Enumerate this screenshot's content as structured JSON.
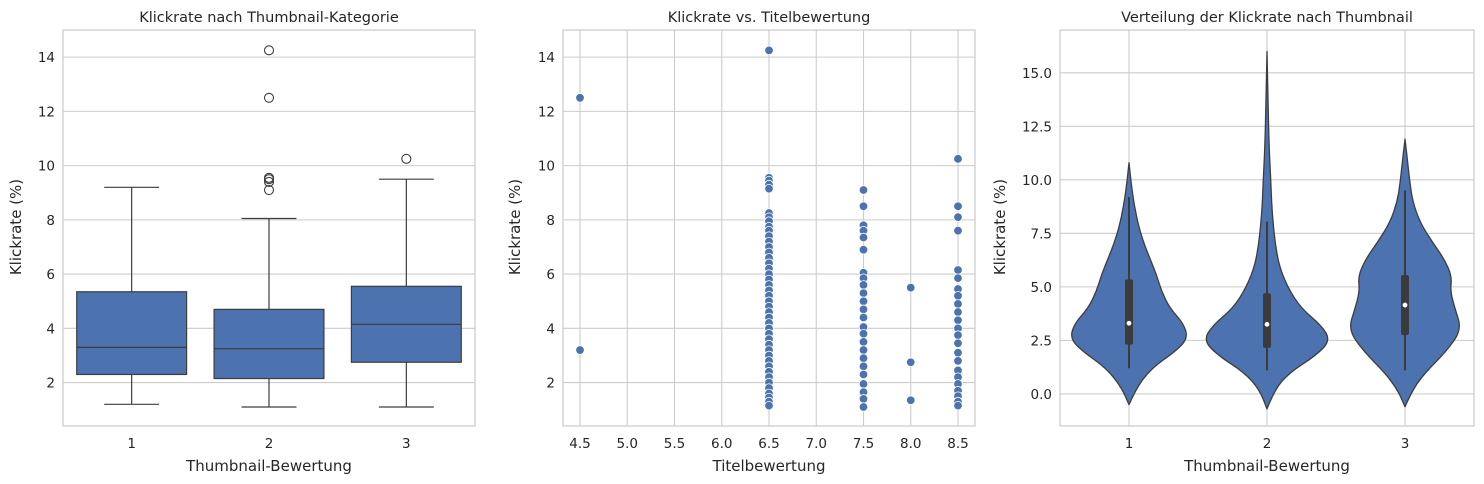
{
  "chart_data": [
    {
      "type": "box",
      "title": "Klickrate nach Thumbnail-Kategorie",
      "xlabel": "Thumbnail-Bewertung",
      "ylabel": "Klickrate (%)",
      "categories": [
        "1",
        "2",
        "3"
      ],
      "ylim": [
        0.4,
        15.0
      ],
      "yticks": [
        "2",
        "4",
        "6",
        "8",
        "10",
        "12",
        "14"
      ],
      "grid": true,
      "color": "#4c72b0",
      "boxes": [
        {
          "category": "1",
          "whisker_low": 1.2,
          "q1": 2.3,
          "median": 3.3,
          "q3": 5.35,
          "whisker_high": 9.2,
          "outliers": []
        },
        {
          "category": "2",
          "whisker_low": 1.1,
          "q1": 2.15,
          "median": 3.25,
          "q3": 4.7,
          "whisker_high": 8.05,
          "outliers": [
            9.1,
            9.4,
            9.5,
            9.55,
            12.5,
            14.25
          ]
        },
        {
          "category": "3",
          "whisker_low": 1.1,
          "q1": 2.75,
          "median": 4.15,
          "q3": 5.55,
          "whisker_high": 9.5,
          "outliers": [
            10.25
          ]
        }
      ]
    },
    {
      "type": "scatter",
      "title": "Klickrate vs. Titelbewertung",
      "xlabel": "Titelbewertung",
      "ylabel": "Klickrate (%)",
      "xlim": [
        4.32,
        8.68
      ],
      "ylim": [
        0.4,
        15.0
      ],
      "xticks": [
        "4.5",
        "5.0",
        "5.5",
        "6.0",
        "6.5",
        "7.0",
        "7.5",
        "8.0",
        "8.5"
      ],
      "yticks": [
        "2",
        "4",
        "6",
        "8",
        "10",
        "12",
        "14"
      ],
      "grid": true,
      "color": "#4c72b0",
      "points": [
        {
          "x": 4.5,
          "y": 12.5
        },
        {
          "x": 4.5,
          "y": 3.2
        },
        {
          "x": 6.5,
          "y": 14.25
        },
        {
          "x": 6.5,
          "y": 9.55
        },
        {
          "x": 6.5,
          "y": 9.45
        },
        {
          "x": 6.5,
          "y": 9.3
        },
        {
          "x": 6.5,
          "y": 9.15
        },
        {
          "x": 6.5,
          "y": 8.25
        },
        {
          "x": 6.5,
          "y": 8.1
        },
        {
          "x": 6.5,
          "y": 7.95
        },
        {
          "x": 6.5,
          "y": 7.75
        },
        {
          "x": 6.5,
          "y": 7.6
        },
        {
          "x": 6.5,
          "y": 7.4
        },
        {
          "x": 6.5,
          "y": 7.2
        },
        {
          "x": 6.5,
          "y": 7.0
        },
        {
          "x": 6.5,
          "y": 6.8
        },
        {
          "x": 6.5,
          "y": 6.6
        },
        {
          "x": 6.5,
          "y": 6.4
        },
        {
          "x": 6.5,
          "y": 6.2
        },
        {
          "x": 6.5,
          "y": 6.0
        },
        {
          "x": 6.5,
          "y": 5.8
        },
        {
          "x": 6.5,
          "y": 5.6
        },
        {
          "x": 6.5,
          "y": 5.4
        },
        {
          "x": 6.5,
          "y": 5.2
        },
        {
          "x": 6.5,
          "y": 5.0
        },
        {
          "x": 6.5,
          "y": 4.8
        },
        {
          "x": 6.5,
          "y": 4.6
        },
        {
          "x": 6.5,
          "y": 4.4
        },
        {
          "x": 6.5,
          "y": 4.2
        },
        {
          "x": 6.5,
          "y": 4.0
        },
        {
          "x": 6.5,
          "y": 3.8
        },
        {
          "x": 6.5,
          "y": 3.6
        },
        {
          "x": 6.5,
          "y": 3.4
        },
        {
          "x": 6.5,
          "y": 3.2
        },
        {
          "x": 6.5,
          "y": 3.0
        },
        {
          "x": 6.5,
          "y": 2.8
        },
        {
          "x": 6.5,
          "y": 2.6
        },
        {
          "x": 6.5,
          "y": 2.4
        },
        {
          "x": 6.5,
          "y": 2.2
        },
        {
          "x": 6.5,
          "y": 2.0
        },
        {
          "x": 6.5,
          "y": 1.8
        },
        {
          "x": 6.5,
          "y": 1.6
        },
        {
          "x": 6.5,
          "y": 1.45
        },
        {
          "x": 6.5,
          "y": 1.3
        },
        {
          "x": 6.5,
          "y": 1.15
        },
        {
          "x": 7.5,
          "y": 9.1
        },
        {
          "x": 7.5,
          "y": 8.5
        },
        {
          "x": 7.5,
          "y": 7.8
        },
        {
          "x": 7.5,
          "y": 7.6
        },
        {
          "x": 7.5,
          "y": 7.35
        },
        {
          "x": 7.5,
          "y": 6.9
        },
        {
          "x": 7.5,
          "y": 6.05
        },
        {
          "x": 7.5,
          "y": 5.85
        },
        {
          "x": 7.5,
          "y": 5.6
        },
        {
          "x": 7.5,
          "y": 5.3
        },
        {
          "x": 7.5,
          "y": 5.0
        },
        {
          "x": 7.5,
          "y": 4.7
        },
        {
          "x": 7.5,
          "y": 4.4
        },
        {
          "x": 7.5,
          "y": 4.05
        },
        {
          "x": 7.5,
          "y": 3.8
        },
        {
          "x": 7.5,
          "y": 3.5
        },
        {
          "x": 7.5,
          "y": 3.2
        },
        {
          "x": 7.5,
          "y": 2.9
        },
        {
          "x": 7.5,
          "y": 2.6
        },
        {
          "x": 7.5,
          "y": 2.3
        },
        {
          "x": 7.5,
          "y": 1.95
        },
        {
          "x": 7.5,
          "y": 1.65
        },
        {
          "x": 7.5,
          "y": 1.4
        },
        {
          "x": 7.5,
          "y": 1.1
        },
        {
          "x": 8.0,
          "y": 5.5
        },
        {
          "x": 8.0,
          "y": 2.75
        },
        {
          "x": 8.0,
          "y": 1.35
        },
        {
          "x": 8.5,
          "y": 10.25
        },
        {
          "x": 8.5,
          "y": 8.5
        },
        {
          "x": 8.5,
          "y": 8.1
        },
        {
          "x": 8.5,
          "y": 7.6
        },
        {
          "x": 8.5,
          "y": 6.15
        },
        {
          "x": 8.5,
          "y": 5.85
        },
        {
          "x": 8.5,
          "y": 5.45
        },
        {
          "x": 8.5,
          "y": 5.2
        },
        {
          "x": 8.5,
          "y": 4.9
        },
        {
          "x": 8.5,
          "y": 4.6
        },
        {
          "x": 8.5,
          "y": 4.3
        },
        {
          "x": 8.5,
          "y": 4.0
        },
        {
          "x": 8.5,
          "y": 3.75
        },
        {
          "x": 8.5,
          "y": 3.45
        },
        {
          "x": 8.5,
          "y": 3.1
        },
        {
          "x": 8.5,
          "y": 2.8
        },
        {
          "x": 8.5,
          "y": 2.45
        },
        {
          "x": 8.5,
          "y": 2.2
        },
        {
          "x": 8.5,
          "y": 1.95
        },
        {
          "x": 8.5,
          "y": 1.7
        },
        {
          "x": 8.5,
          "y": 1.5
        },
        {
          "x": 8.5,
          "y": 1.3
        },
        {
          "x": 8.5,
          "y": 1.15
        }
      ]
    },
    {
      "type": "violin",
      "title": "Verteilung der Klickrate nach Thumbnail",
      "xlabel": "Thumbnail-Bewertung",
      "ylabel": "Klickrate (%)",
      "categories": [
        "1",
        "2",
        "3"
      ],
      "ylim": [
        -1.5,
        17.0
      ],
      "yticks": [
        "0.0",
        "2.5",
        "5.0",
        "7.5",
        "10.0",
        "12.5",
        "15.0"
      ],
      "grid": true,
      "color": "#4c72b0",
      "violins": [
        {
          "category": "1",
          "min": -0.5,
          "max": 10.8,
          "whisker_low": 1.2,
          "q1": 2.3,
          "median": 3.3,
          "q3": 5.35,
          "whisker_high": 9.2,
          "density": [
            [
              -0.5,
              0.0
            ],
            [
              0.3,
              0.1
            ],
            [
              1.2,
              0.3
            ],
            [
              2.0,
              0.62
            ],
            [
              2.6,
              0.78
            ],
            [
              3.3,
              0.72
            ],
            [
              4.0,
              0.54
            ],
            [
              4.8,
              0.43
            ],
            [
              5.6,
              0.36
            ],
            [
              6.3,
              0.28
            ],
            [
              7.0,
              0.2
            ],
            [
              7.8,
              0.13
            ],
            [
              8.8,
              0.07
            ],
            [
              9.8,
              0.03
            ],
            [
              10.8,
              0.0
            ]
          ]
        },
        {
          "category": "2",
          "min": -0.7,
          "max": 16.0,
          "whisker_low": 1.1,
          "q1": 2.15,
          "median": 3.25,
          "q3": 4.7,
          "whisker_high": 8.05,
          "density": [
            [
              -0.7,
              0.0
            ],
            [
              0.2,
              0.1
            ],
            [
              1.0,
              0.3
            ],
            [
              1.8,
              0.65
            ],
            [
              2.5,
              0.84
            ],
            [
              3.2,
              0.72
            ],
            [
              4.0,
              0.45
            ],
            [
              5.0,
              0.27
            ],
            [
              6.0,
              0.16
            ],
            [
              7.0,
              0.11
            ],
            [
              8.0,
              0.08
            ],
            [
              9.0,
              0.06
            ],
            [
              10.0,
              0.05
            ],
            [
              11.0,
              0.035
            ],
            [
              12.0,
              0.025
            ],
            [
              13.0,
              0.018
            ],
            [
              14.0,
              0.012
            ],
            [
              15.0,
              0.006
            ],
            [
              16.0,
              0.0
            ]
          ]
        },
        {
          "category": "3",
          "min": -0.6,
          "max": 11.9,
          "whisker_low": 1.1,
          "q1": 2.75,
          "median": 4.15,
          "q3": 5.55,
          "whisker_high": 9.5,
          "density": [
            [
              -0.6,
              0.0
            ],
            [
              0.2,
              0.1
            ],
            [
              1.0,
              0.27
            ],
            [
              2.0,
              0.55
            ],
            [
              3.0,
              0.75
            ],
            [
              4.0,
              0.66
            ],
            [
              4.8,
              0.6
            ],
            [
              5.5,
              0.62
            ],
            [
              6.3,
              0.52
            ],
            [
              7.1,
              0.36
            ],
            [
              8.0,
              0.2
            ],
            [
              9.0,
              0.1
            ],
            [
              10.0,
              0.06
            ],
            [
              11.0,
              0.03
            ],
            [
              11.9,
              0.0
            ]
          ]
        }
      ]
    }
  ]
}
